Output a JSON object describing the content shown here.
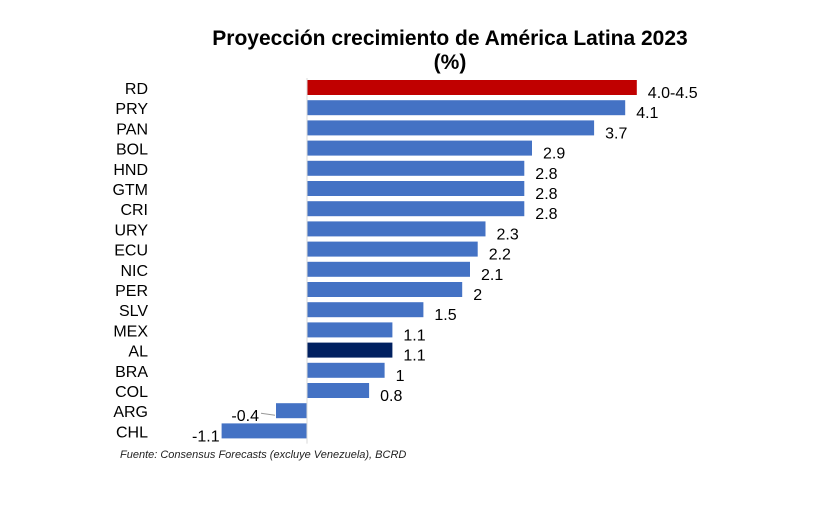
{
  "chart_data": {
    "type": "bar",
    "orientation": "horizontal",
    "title": "Proyección crecimiento de América Latina 2023",
    "subtitle": "(%)",
    "categories": [
      "RD",
      "PRY",
      "PAN",
      "BOL",
      "HND",
      "GTM",
      "CRI",
      "URY",
      "ECU",
      "NIC",
      "PER",
      "SLV",
      "MEX",
      "AL",
      "BRA",
      "COL",
      "ARG",
      "CHL"
    ],
    "values": [
      4.25,
      4.1,
      3.7,
      2.9,
      2.8,
      2.8,
      2.8,
      2.3,
      2.2,
      2.1,
      2.0,
      1.5,
      1.1,
      1.1,
      1.0,
      0.8,
      -0.4,
      -1.1
    ],
    "data_labels": [
      "4.0-4.5",
      "4.1",
      "3.7",
      "2.9",
      "2.8",
      "2.8",
      "2.8",
      "2.3",
      "2.2",
      "2.1",
      "2",
      "1.5",
      "1.1",
      "1.1",
      "1",
      "0.8",
      "-0.4",
      "-1.1"
    ],
    "bar_colors": [
      "#C00000",
      "#4472C4",
      "#4472C4",
      "#4472C4",
      "#4472C4",
      "#4472C4",
      "#4472C4",
      "#4472C4",
      "#4472C4",
      "#4472C4",
      "#4472C4",
      "#4472C4",
      "#4472C4",
      "#002060",
      "#4472C4",
      "#4472C4",
      "#4472C4",
      "#4472C4"
    ],
    "xlim": [
      -1.1,
      4.5
    ],
    "grid": false,
    "legend": "none",
    "source": "Fuente:  Consensus Forecasts (excluye Venezuela), BCRD"
  }
}
